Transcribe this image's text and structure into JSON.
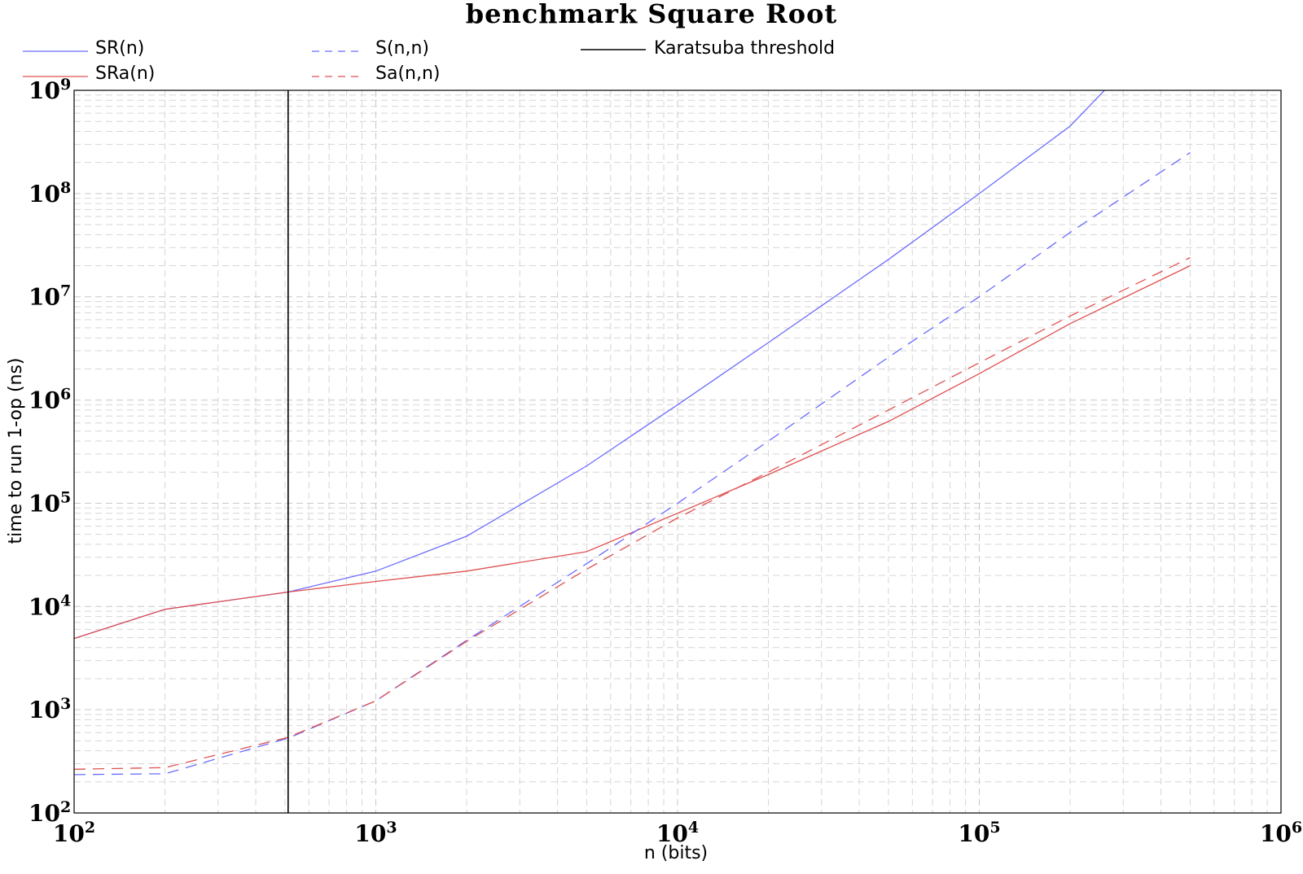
{
  "chart_data": {
    "type": "line",
    "title": "benchmark Square Root",
    "xlabel": "n (bits)",
    "ylabel": "time to run 1-op (ns)",
    "xscale": "log",
    "yscale": "log",
    "xlim": [
      100,
      1000000
    ],
    "ylim": [
      100,
      1000000000
    ],
    "x_ticks": [
      {
        "base": "10",
        "exp": "2",
        "value": 100
      },
      {
        "base": "10",
        "exp": "3",
        "value": 1000
      },
      {
        "base": "10",
        "exp": "4",
        "value": 10000
      },
      {
        "base": "10",
        "exp": "5",
        "value": 100000
      },
      {
        "base": "10",
        "exp": "6",
        "value": 1000000
      }
    ],
    "y_ticks": [
      {
        "base": "10",
        "exp": "2",
        "value": 100
      },
      {
        "base": "10",
        "exp": "3",
        "value": 1000
      },
      {
        "base": "10",
        "exp": "4",
        "value": 10000
      },
      {
        "base": "10",
        "exp": "5",
        "value": 100000
      },
      {
        "base": "10",
        "exp": "6",
        "value": 1000000
      },
      {
        "base": "10",
        "exp": "7",
        "value": 10000000
      },
      {
        "base": "10",
        "exp": "8",
        "value": 100000000
      },
      {
        "base": "10",
        "exp": "9",
        "value": 1000000000
      }
    ],
    "grid": true,
    "legend_position": "top",
    "series": [
      {
        "name": "SR(n)",
        "color": "#6b6bff",
        "dashed": false,
        "points": [
          [
            100,
            4900
          ],
          [
            200,
            9400
          ],
          [
            512,
            13800
          ],
          [
            1000,
            22000
          ],
          [
            2000,
            48000
          ],
          [
            5000,
            230000
          ],
          [
            10000,
            900000
          ],
          [
            20000,
            3600000
          ],
          [
            50000,
            23000000
          ],
          [
            100000,
            100000000
          ],
          [
            200000,
            450000000
          ],
          [
            260000,
            1000000000
          ]
        ]
      },
      {
        "name": "SRa(n)",
        "color": "#e05050",
        "dashed": false,
        "points": [
          [
            100,
            4900
          ],
          [
            200,
            9400
          ],
          [
            512,
            13800
          ],
          [
            1000,
            17500
          ],
          [
            2000,
            22000
          ],
          [
            5000,
            34000
          ],
          [
            10000,
            80000
          ],
          [
            20000,
            190000
          ],
          [
            50000,
            620000
          ],
          [
            100000,
            1800000
          ],
          [
            200000,
            5500000
          ],
          [
            500000,
            20000000
          ]
        ]
      },
      {
        "name": "S(n,n)",
        "color": "#6b6bff",
        "dashed": true,
        "points": [
          [
            100,
            235
          ],
          [
            200,
            240
          ],
          [
            512,
            530
          ],
          [
            1000,
            1220
          ],
          [
            2000,
            4700
          ],
          [
            5000,
            26000
          ],
          [
            10000,
            100000
          ],
          [
            20000,
            400000
          ],
          [
            50000,
            2600000
          ],
          [
            100000,
            10000000
          ],
          [
            200000,
            42000000
          ],
          [
            500000,
            250000000
          ]
        ]
      },
      {
        "name": "Sa(n,n)",
        "color": "#e05050",
        "dashed": true,
        "points": [
          [
            100,
            265
          ],
          [
            200,
            275
          ],
          [
            512,
            540
          ],
          [
            1000,
            1220
          ],
          [
            2000,
            4600
          ],
          [
            5000,
            23000
          ],
          [
            10000,
            72000
          ],
          [
            20000,
            200000
          ],
          [
            50000,
            800000
          ],
          [
            100000,
            2300000
          ],
          [
            200000,
            6500000
          ],
          [
            500000,
            24000000
          ]
        ]
      }
    ],
    "threshold": {
      "name": "Karatsuba threshold",
      "x": 512,
      "color": "#000000"
    }
  }
}
